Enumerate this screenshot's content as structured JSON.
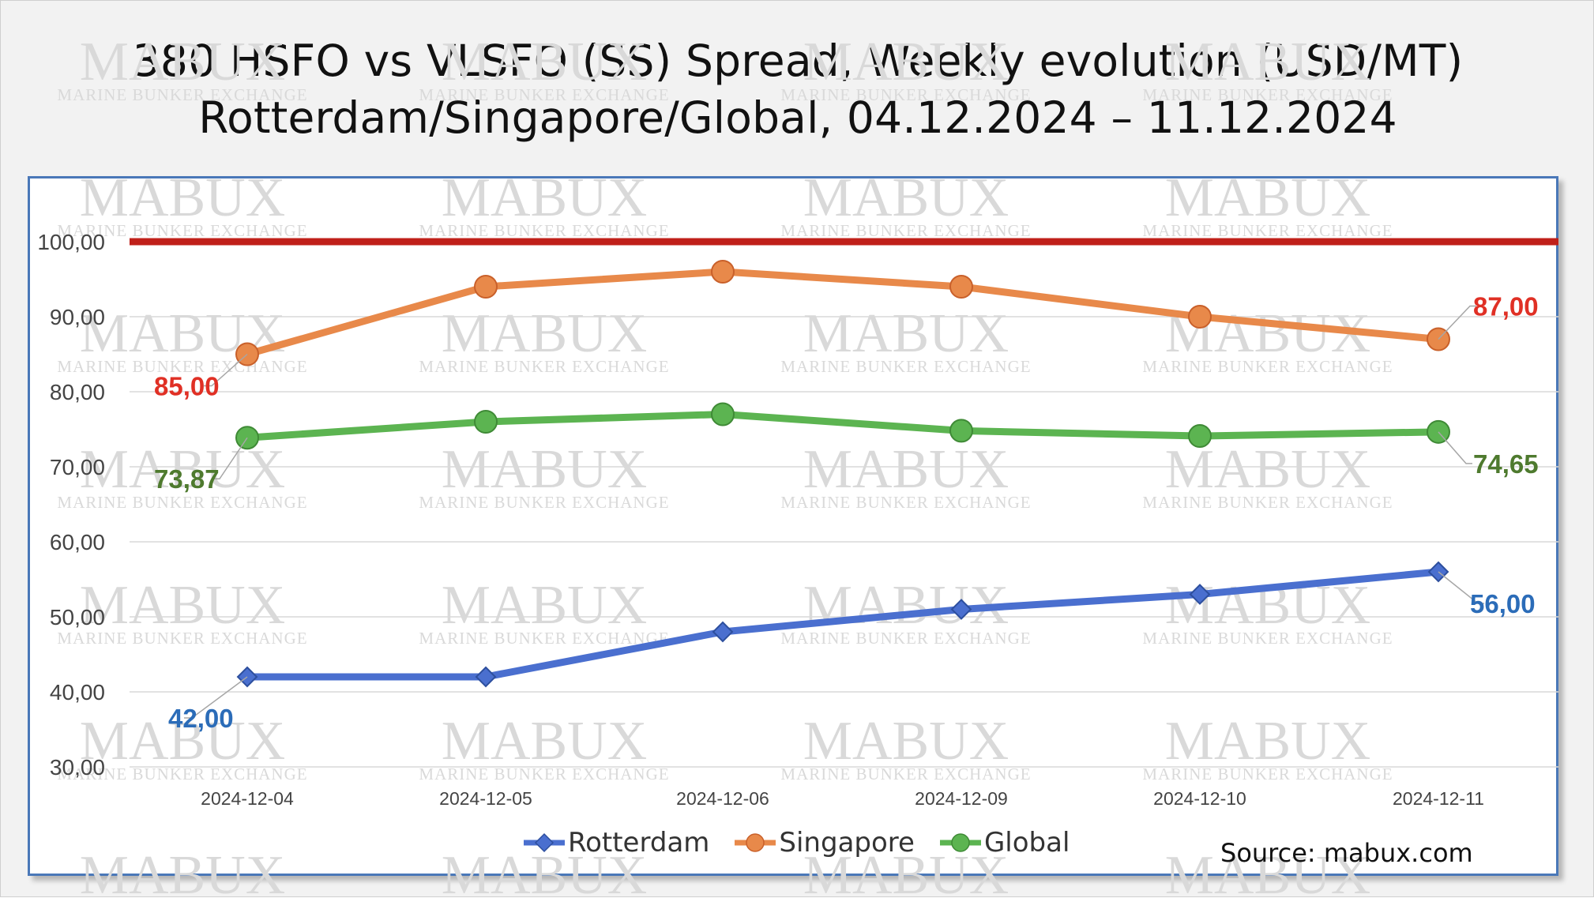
{
  "chart_data": {
    "type": "line",
    "title": "380 HSFO vs VLSFO (SS) Spread, Weekly evolution (USD/MT)",
    "subtitle": "Rotterdam/Singapore/Global, 04.12.2024 – 11.12.2024",
    "categories": [
      "2024-12-04",
      "2024-12-05",
      "2024-12-06",
      "2024-12-09",
      "2024-12-10",
      "2024-12-11"
    ],
    "y_ticks": [
      "30,00",
      "40,00",
      "50,00",
      "60,00",
      "70,00",
      "80,00",
      "90,00",
      "100,00"
    ],
    "ylim": [
      30,
      100
    ],
    "grid": true,
    "legend_position": "bottom",
    "reference_line": {
      "value": 100,
      "color": "#c0201a"
    },
    "series": [
      {
        "name": "Rotterdam",
        "values": [
          42,
          42,
          48,
          51,
          53,
          56
        ],
        "color": "#4a6fcf",
        "marker": "diamond",
        "label_color": "#2b6cb8",
        "first_label": "42,00",
        "last_label": "56,00"
      },
      {
        "name": "Singapore",
        "values": [
          85,
          94,
          96,
          94,
          90,
          87
        ],
        "color": "#e8894a",
        "marker": "circle",
        "label_color": "#e03025",
        "first_label": "85,00",
        "last_label": "87,00"
      },
      {
        "name": "Global",
        "values": [
          73.87,
          76,
          77,
          74.8,
          74.1,
          74.65
        ],
        "color": "#5cb451",
        "marker": "circle",
        "label_color": "#4e7a2e",
        "first_label": "73,87",
        "last_label": "74,65"
      }
    ]
  },
  "watermark": {
    "big": "MABUX",
    "small": "MARINE BUNKER EXCHANGE"
  },
  "source": "Source: mabux.com"
}
